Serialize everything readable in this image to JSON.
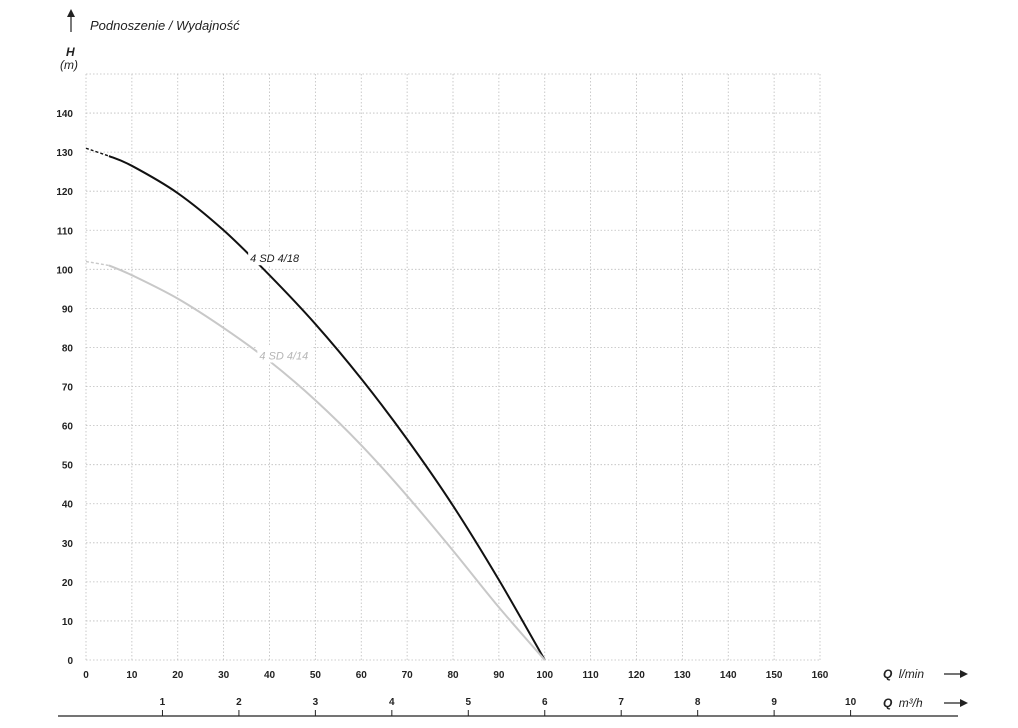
{
  "chart_data": {
    "type": "line",
    "title": "Podnoszenie / Wydajność",
    "y_axis": {
      "symbol": "H",
      "unit": "(m)",
      "ylim": [
        0,
        150
      ],
      "ticks": [
        0,
        10,
        20,
        30,
        40,
        50,
        60,
        70,
        80,
        90,
        100,
        110,
        120,
        130,
        140
      ]
    },
    "x_axis_primary": {
      "symbol": "Q",
      "unit": "l/min",
      "xlim": [
        0,
        160
      ],
      "ticks": [
        0,
        10,
        20,
        30,
        40,
        50,
        60,
        70,
        80,
        90,
        100,
        110,
        120,
        130,
        140,
        150,
        160
      ]
    },
    "x_axis_secondary": {
      "symbol": "Q",
      "unit": "m³/h",
      "ticks": [
        1,
        2,
        3,
        4,
        5,
        6,
        7,
        8,
        9,
        10
      ]
    },
    "grid": true,
    "series": [
      {
        "name": "4 SD 4/18",
        "color": "#111111",
        "dashed_until_x": 5,
        "x": [
          0,
          5,
          10,
          20,
          30,
          40,
          50,
          60,
          70,
          80,
          90,
          100
        ],
        "y": [
          131,
          129,
          126.5,
          119.5,
          110,
          98.5,
          86,
          72,
          56.5,
          39.5,
          20.5,
          0
        ]
      },
      {
        "name": "4 SD 4/14",
        "color": "#c8c8c8",
        "dashed_until_x": 5,
        "x": [
          0,
          5,
          10,
          20,
          30,
          40,
          50,
          60,
          70,
          80,
          90,
          100
        ],
        "y": [
          102,
          101,
          98.5,
          92.5,
          85,
          76.5,
          66.5,
          55,
          42,
          28,
          13.5,
          0
        ]
      }
    ]
  }
}
